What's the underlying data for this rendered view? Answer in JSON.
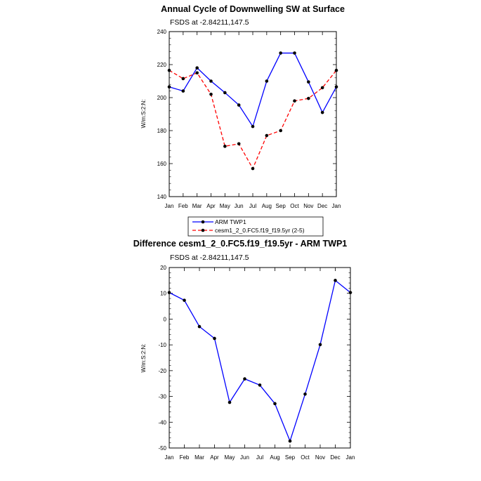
{
  "chart_data": [
    {
      "type": "line",
      "title": "Annual Cycle of Downwelling SW at Surface",
      "subtitle": "FSDS at -2.84211,147.5",
      "xlabel": "",
      "ylabel": "W/m:S:2:N:",
      "categories": [
        "Jan",
        "Feb",
        "Mar",
        "Apr",
        "May",
        "Jun",
        "Jul",
        "Aug",
        "Sep",
        "Oct",
        "Nov",
        "Dec",
        "Jan"
      ],
      "ylim": [
        140,
        240
      ],
      "yticks": [
        140,
        160,
        180,
        200,
        220,
        240
      ],
      "series": [
        {
          "name": "ARM TWP1",
          "color": "#0000ff",
          "dash": "solid",
          "values": [
            206.5,
            204,
            218,
            210,
            203,
            195.5,
            182.5,
            210,
            227,
            227,
            209.5,
            191,
            206.5
          ]
        },
        {
          "name": "cesm1_2_0.FC5.f19_f19.5yr (2-5)",
          "color": "#ff0000",
          "dash": "dashed",
          "values": [
            216.5,
            211.5,
            215,
            202,
            170.5,
            172,
            157,
            177,
            180,
            198,
            199.5,
            206,
            216.5
          ]
        }
      ]
    },
    {
      "type": "line",
      "title": "Difference cesm1_2_0.FC5.f19_f19.5yr - ARM TWP1",
      "subtitle": "FSDS at -2.84211,147.5",
      "xlabel": "",
      "ylabel": "W/m:S:2:N:",
      "categories": [
        "Jan",
        "Feb",
        "Mar",
        "Apr",
        "May",
        "Jun",
        "Jul",
        "Aug",
        "Sep",
        "Oct",
        "Nov",
        "Dec",
        "Jan"
      ],
      "ylim": [
        -50,
        20
      ],
      "yticks": [
        -50,
        -40,
        -30,
        -20,
        -10,
        0,
        10,
        20
      ],
      "series": [
        {
          "name": "Difference",
          "color": "#0000ff",
          "dash": "solid",
          "values": [
            10.3,
            7.3,
            -2.9,
            -7.5,
            -32.3,
            -23.2,
            -25.6,
            -32.8,
            -47.3,
            -29.1,
            -9.9,
            15,
            10.3
          ]
        }
      ]
    }
  ]
}
